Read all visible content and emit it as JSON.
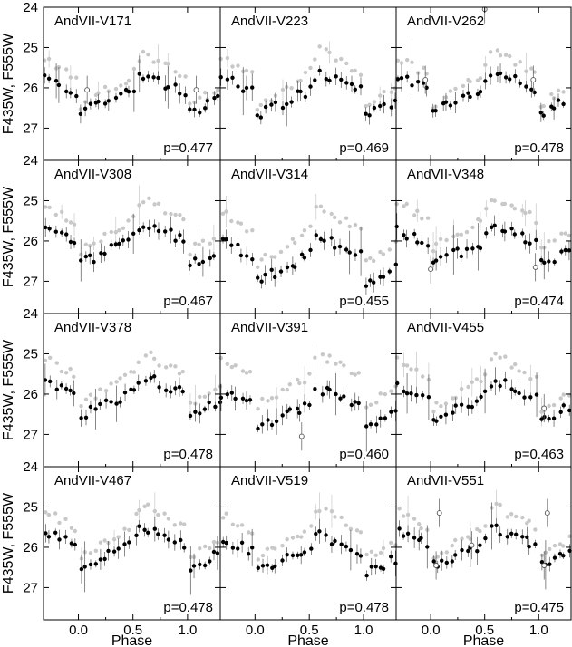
{
  "chart_data": {
    "type": "scatter",
    "layout": "4x3 panel grid, shared axes",
    "xlabel": "Phase",
    "ylabel": "F435W, F555W",
    "xlim": [
      -0.32,
      1.3
    ],
    "ylim": [
      27.8,
      24.0
    ],
    "y_inverted": true,
    "x_ticks": [
      "0.0",
      "0.5",
      "1.0"
    ],
    "x_tick_values": [
      0.0,
      0.5,
      1.0
    ],
    "y_ticks": [
      "24",
      "25",
      "26",
      "27"
    ],
    "y_tick_values": [
      24,
      25,
      26,
      27
    ],
    "colors": {
      "F555W": "#000000",
      "F435W": "#c8c8c8"
    },
    "panels": [
      {
        "name": "AndVII-V171",
        "period": "p=0.477",
        "v_mean": 26.15,
        "v_amp": 0.95,
        "b_mean": 25.8,
        "b_amp": 1.3,
        "open_points": [
          [
            0.08,
            26.05
          ],
          [
            1.08,
            26.05
          ]
        ]
      },
      {
        "name": "AndVII-V223",
        "period": "p=0.469",
        "v_mean": 26.15,
        "v_amp": 1.1,
        "b_mean": 25.75,
        "b_amp": 1.45,
        "open_points": []
      },
      {
        "name": "AndVII-V262",
        "period": "p=0.478",
        "v_mean": 26.1,
        "v_amp": 1.05,
        "b_mean": 25.75,
        "b_amp": 1.4,
        "open_points": [
          [
            -0.05,
            25.8
          ],
          [
            0.5,
            24.05
          ],
          [
            0.95,
            25.8
          ]
        ]
      },
      {
        "name": "AndVII-V308",
        "period": "p=0.467",
        "v_mean": 26.05,
        "v_amp": 1.05,
        "b_mean": 25.6,
        "b_amp": 1.35,
        "open_points": []
      },
      {
        "name": "AndVII-V314",
        "period": "p=0.455",
        "v_mean": 26.45,
        "v_amp": 1.2,
        "b_mean": 25.85,
        "b_amp": 1.5,
        "open_points": []
      },
      {
        "name": "AndVII-V348",
        "period": "p=0.474",
        "v_mean": 26.1,
        "v_amp": 0.95,
        "b_mean": 25.55,
        "b_amp": 1.3,
        "open_points": [
          [
            0.0,
            26.7
          ],
          [
            0.97,
            26.65
          ]
        ]
      },
      {
        "name": "AndVII-V378",
        "period": "p=0.478",
        "v_mean": 26.05,
        "v_amp": 1.0,
        "b_mean": 25.6,
        "b_amp": 1.3,
        "open_points": []
      },
      {
        "name": "AndVII-V391",
        "period": "p=0.460",
        "v_mean": 26.35,
        "v_amp": 1.0,
        "b_mean": 25.65,
        "b_amp": 1.35,
        "open_points": [
          [
            0.43,
            27.05
          ]
        ]
      },
      {
        "name": "AndVII-V455",
        "period": "p=0.463",
        "v_mean": 26.15,
        "v_amp": 1.05,
        "b_mean": 25.7,
        "b_amp": 1.4,
        "open_points": [
          [
            1.05,
            26.35
          ]
        ]
      },
      {
        "name": "AndVII-V467",
        "period": "p=0.478",
        "v_mean": 26.0,
        "v_amp": 1.05,
        "b_mean": 25.6,
        "b_amp": 1.3,
        "open_points": []
      },
      {
        "name": "AndVII-V519",
        "period": "p=0.478",
        "v_mean": 26.15,
        "v_amp": 0.95,
        "b_mean": 25.65,
        "b_amp": 1.25,
        "open_points": []
      },
      {
        "name": "AndVII-V551",
        "period": "p=0.475",
        "v_mean": 26.0,
        "v_amp": 1.0,
        "b_mean": 25.6,
        "b_amp": 1.3,
        "open_points": [
          [
            0.05,
            26.45
          ],
          [
            0.08,
            25.15
          ],
          [
            0.38,
            25.95
          ],
          [
            1.05,
            26.45
          ],
          [
            1.08,
            25.15
          ]
        ]
      }
    ]
  }
}
